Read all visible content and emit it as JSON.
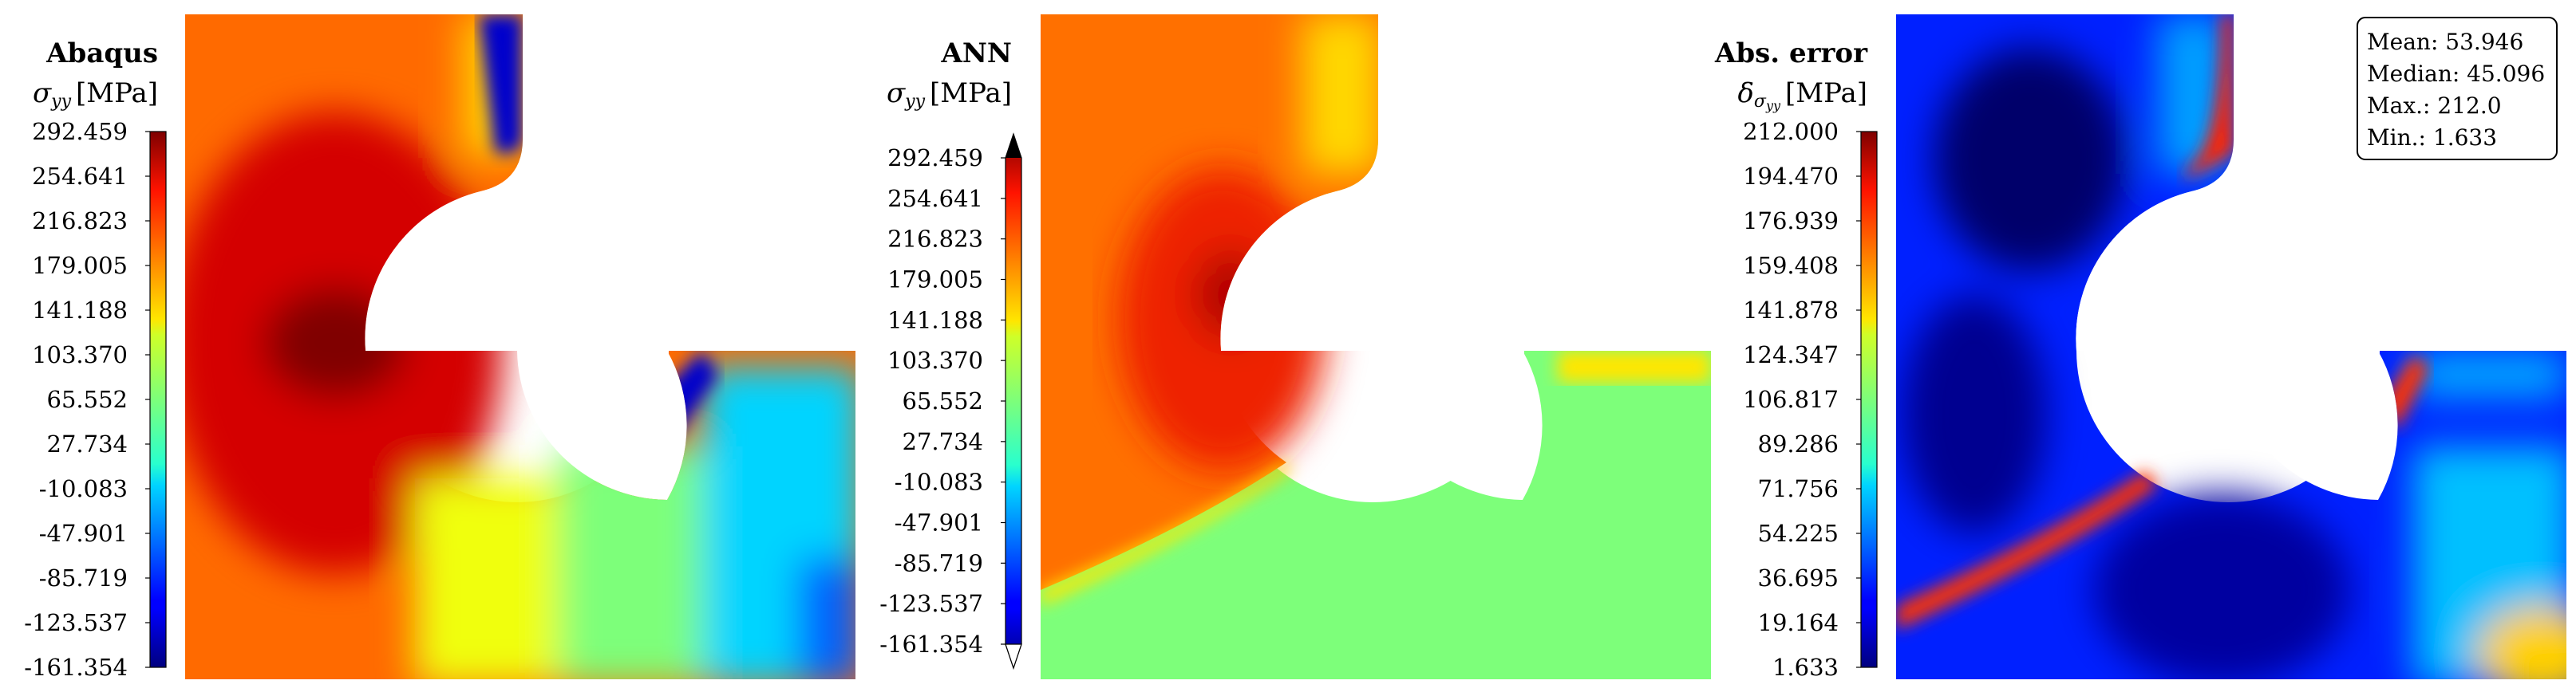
{
  "chart_data": [
    {
      "type": "heatmap",
      "title": "Abaqus",
      "quantity": "σ",
      "subscript": "yy",
      "unit": "[MPa]",
      "colormap": "jet",
      "ticks": [
        "292.459",
        "254.641",
        "216.823",
        "179.005",
        "141.188",
        "103.370",
        "65.552",
        "27.734",
        "-10.083",
        "-47.901",
        "-85.719",
        "-123.537",
        "-161.354"
      ],
      "range": [
        -161.354,
        292.459
      ]
    },
    {
      "type": "heatmap",
      "title": "ANN",
      "quantity": "σ",
      "subscript": "yy",
      "unit": "[MPa]",
      "colormap": "jet",
      "colorbar_extend": "both",
      "ticks": [
        "292.459",
        "254.641",
        "216.823",
        "179.005",
        "141.188",
        "103.370",
        "65.552",
        "27.734",
        "-10.083",
        "-47.901",
        "-85.719",
        "-123.537",
        "-161.354"
      ],
      "range": [
        -161.354,
        292.459
      ]
    },
    {
      "type": "heatmap",
      "title": "Abs. error",
      "quantity": "δ",
      "subscript_base": "σ",
      "subscript": "yy",
      "unit": "[MPa]",
      "colormap": "jet",
      "ticks": [
        "212.000",
        "194.470",
        "176.939",
        "159.408",
        "141.878",
        "124.347",
        "106.817",
        "89.286",
        "71.756",
        "54.225",
        "36.695",
        "19.164",
        "1.633"
      ],
      "range": [
        1.633,
        212.0
      ],
      "stats": [
        "Mean: 53.946",
        "Median: 45.096",
        "Max.: 212.0",
        "Min.: 1.633"
      ]
    }
  ]
}
